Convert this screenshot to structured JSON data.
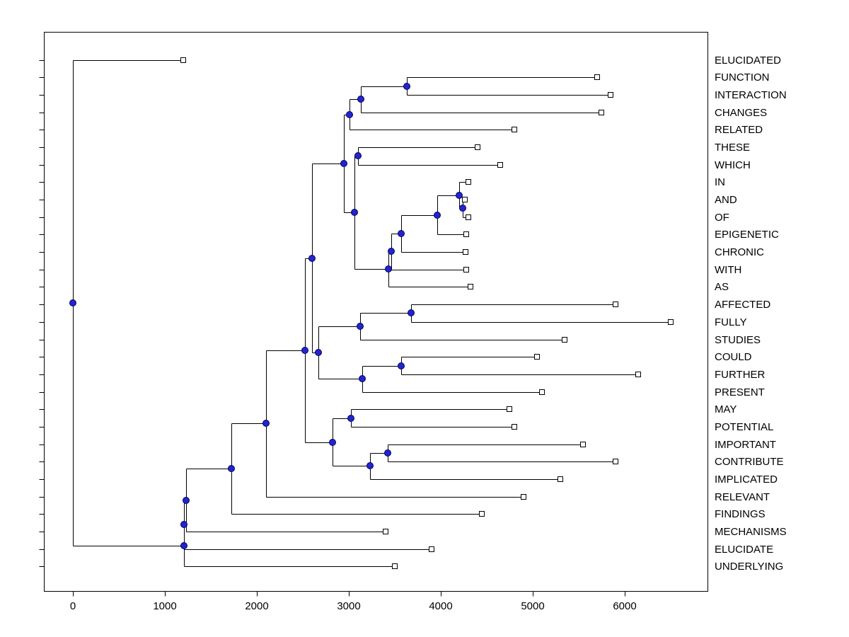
{
  "figure": {
    "background": "#ffffff"
  },
  "chart_data": {
    "type": "dendrogram",
    "orientation": "horizontal",
    "title": "",
    "x_axis": {
      "xlim": [
        -315,
        6900
      ],
      "ticks": [
        0,
        1000,
        2000,
        3000,
        4000,
        5000,
        6000
      ],
      "tick_labels": [
        "0",
        "1000",
        "2000",
        "3000",
        "4000",
        "5000",
        "6000"
      ]
    },
    "leaves": [
      {
        "id": "L0",
        "label": "ELUCIDATED",
        "x": 1200
      },
      {
        "id": "L1",
        "label": "FUNCTION",
        "x": 5700
      },
      {
        "id": "L2",
        "label": "INTERACTION",
        "x": 5850
      },
      {
        "id": "L3",
        "label": "CHANGES",
        "x": 5750
      },
      {
        "id": "L4",
        "label": "RELATED",
        "x": 4800
      },
      {
        "id": "L5",
        "label": "THESE",
        "x": 4400
      },
      {
        "id": "L6",
        "label": "WHICH",
        "x": 4650
      },
      {
        "id": "L7",
        "label": "IN",
        "x": 4300
      },
      {
        "id": "L8",
        "label": "AND",
        "x": 4260
      },
      {
        "id": "L9",
        "label": "OF",
        "x": 4300
      },
      {
        "id": "L10",
        "label": "EPIGENETIC",
        "x": 4280
      },
      {
        "id": "L11",
        "label": "CHRONIC",
        "x": 4270
      },
      {
        "id": "L12",
        "label": "WITH",
        "x": 4280
      },
      {
        "id": "L13",
        "label": "AS",
        "x": 4320
      },
      {
        "id": "L14",
        "label": "AFFECTED",
        "x": 5900
      },
      {
        "id": "L15",
        "label": "FULLY",
        "x": 6500
      },
      {
        "id": "L16",
        "label": "STUDIES",
        "x": 5350
      },
      {
        "id": "L17",
        "label": "COULD",
        "x": 5050
      },
      {
        "id": "L18",
        "label": "FURTHER",
        "x": 6150
      },
      {
        "id": "L19",
        "label": "PRESENT",
        "x": 5100
      },
      {
        "id": "L20",
        "label": "MAY",
        "x": 4750
      },
      {
        "id": "L21",
        "label": "POTENTIAL",
        "x": 4800
      },
      {
        "id": "L22",
        "label": "IMPORTANT",
        "x": 5550
      },
      {
        "id": "L23",
        "label": "CONTRIBUTE",
        "x": 5900
      },
      {
        "id": "L24",
        "label": "IMPLICATED",
        "x": 5300
      },
      {
        "id": "L25",
        "label": "RELEVANT",
        "x": 4900
      },
      {
        "id": "L26",
        "label": "FINDINGS",
        "x": 4450
      },
      {
        "id": "L27",
        "label": "MECHANISMS",
        "x": 3400
      },
      {
        "id": "L28",
        "label": "ELUCIDATE",
        "x": 3900
      },
      {
        "id": "L29",
        "label": "UNDERLYING",
        "x": 3500
      }
    ],
    "internal_nodes": [
      {
        "id": "N1",
        "children": [
          "L1",
          "L2"
        ],
        "x": 3630
      },
      {
        "id": "N2",
        "children": [
          "N1",
          "L3"
        ],
        "x": 3130
      },
      {
        "id": "N3",
        "children": [
          "N2",
          "L4"
        ],
        "x": 3010
      },
      {
        "id": "N4",
        "children": [
          "L5",
          "L6"
        ],
        "x": 3100
      },
      {
        "id": "N5",
        "children": [
          "L8",
          "L9"
        ],
        "x": 4240
      },
      {
        "id": "N6",
        "children": [
          "L7",
          "N5"
        ],
        "x": 4200
      },
      {
        "id": "N7",
        "children": [
          "N6",
          "L10"
        ],
        "x": 3960
      },
      {
        "id": "N8",
        "children": [
          "N7",
          "L11"
        ],
        "x": 3570
      },
      {
        "id": "N9",
        "children": [
          "N8",
          "L12"
        ],
        "x": 3460
      },
      {
        "id": "N10",
        "children": [
          "N9",
          "L13"
        ],
        "x": 3430
      },
      {
        "id": "N11",
        "children": [
          "N4",
          "N10"
        ],
        "x": 3060
      },
      {
        "id": "N12",
        "children": [
          "N3",
          "N11"
        ],
        "x": 2950
      },
      {
        "id": "N13",
        "children": [
          "L14",
          "L15"
        ],
        "x": 3680
      },
      {
        "id": "N14",
        "children": [
          "N13",
          "L16"
        ],
        "x": 3120
      },
      {
        "id": "N15",
        "children": [
          "L17",
          "L18"
        ],
        "x": 3570
      },
      {
        "id": "N16",
        "children": [
          "N15",
          "L19"
        ],
        "x": 3150
      },
      {
        "id": "N17",
        "children": [
          "N14",
          "N16"
        ],
        "x": 2670
      },
      {
        "id": "N18",
        "children": [
          "N12",
          "N17"
        ],
        "x": 2600
      },
      {
        "id": "N19",
        "children": [
          "L20",
          "L21"
        ],
        "x": 3020
      },
      {
        "id": "N20",
        "children": [
          "L22",
          "L23"
        ],
        "x": 3420
      },
      {
        "id": "N21",
        "children": [
          "N20",
          "L24"
        ],
        "x": 3230
      },
      {
        "id": "N22",
        "children": [
          "N19",
          "N21"
        ],
        "x": 2820
      },
      {
        "id": "N23",
        "children": [
          "N18",
          "N22"
        ],
        "x": 2520
      },
      {
        "id": "N24",
        "children": [
          "N23",
          "L25"
        ],
        "x": 2100
      },
      {
        "id": "N25",
        "children": [
          "N24",
          "L26"
        ],
        "x": 1720
      },
      {
        "id": "N26",
        "children": [
          "N25",
          "L27"
        ],
        "x": 1230
      },
      {
        "id": "N27",
        "children": [
          "N26",
          "L28"
        ],
        "x": 1210
      },
      {
        "id": "N28",
        "children": [
          "N27",
          "L29"
        ],
        "x": 1205
      },
      {
        "id": "ROOT",
        "children": [
          "L0",
          "N28"
        ],
        "x": 0
      }
    ],
    "style": {
      "branch_color": "#000000",
      "internal_node_fill": "#2424cc",
      "internal_node_edge": "#000066",
      "leaf_marker_fill": "#ffffff",
      "leaf_marker_edge": "#000000",
      "axis_color": "#000000"
    }
  }
}
